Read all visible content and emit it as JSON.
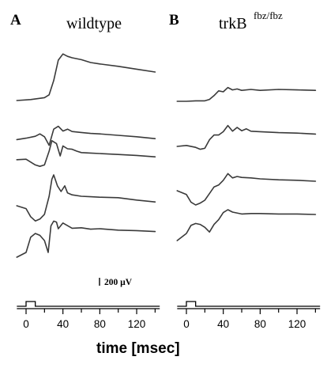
{
  "chart_data": [
    {
      "type": "line",
      "panel": "A",
      "title": "wildtype",
      "title_sup": "",
      "xlabel": "time [msec]",
      "xlim": [
        -10,
        145
      ],
      "x_ticks": [
        0,
        40,
        80,
        120
      ],
      "scale_bar": "200 µV",
      "stimulus": {
        "start_ms": 0,
        "end_ms": 10
      },
      "series": [
        {
          "x": [
            -10,
            5,
            20,
            25,
            30,
            35,
            40,
            45,
            50,
            60,
            70,
            80,
            100,
            120,
            140
          ],
          "y": [
            0,
            -20,
            -60,
            -120,
            -420,
            -850,
            -980,
            -930,
            -900,
            -860,
            -800,
            -770,
            -720,
            -660,
            -600
          ]
        },
        {
          "x": [
            -10,
            0,
            10,
            15,
            20,
            25,
            30,
            35,
            40,
            45,
            50,
            55,
            60,
            70,
            80,
            100,
            120,
            140
          ],
          "y": [
            -60,
            -90,
            -130,
            -180,
            -120,
            60,
            -280,
            -340,
            -240,
            -280,
            -230,
            -220,
            -210,
            -190,
            -180,
            -150,
            -120,
            -80
          ]
        },
        {
          "x": [
            -10,
            0,
            10,
            15,
            20,
            25,
            28,
            33,
            37,
            40,
            45,
            50,
            55,
            60,
            70,
            80,
            100,
            120,
            140
          ],
          "y": [
            -20,
            -30,
            90,
            120,
            90,
            -200,
            -420,
            -360,
            -100,
            -310,
            -250,
            -240,
            -200,
            -170,
            -160,
            -150,
            -130,
            -110,
            -80
          ]
        },
        {
          "x": [
            -10,
            0,
            5,
            10,
            15,
            20,
            25,
            28,
            30,
            34,
            38,
            42,
            45,
            50,
            60,
            70,
            80,
            100,
            120,
            140
          ],
          "y": [
            0,
            60,
            230,
            320,
            280,
            180,
            -200,
            -560,
            -650,
            -420,
            -300,
            -420,
            -270,
            -230,
            -200,
            -190,
            -180,
            -170,
            -120,
            -80
          ]
        },
        {
          "x": [
            -10,
            0,
            5,
            10,
            15,
            20,
            24,
            27,
            30,
            33,
            35,
            40,
            50,
            60,
            70,
            80,
            100,
            120,
            140
          ],
          "y": [
            0,
            -100,
            -420,
            -500,
            -460,
            -350,
            -100,
            -660,
            -760,
            -740,
            -600,
            -720,
            -610,
            -620,
            -590,
            -600,
            -570,
            -560,
            -540
          ]
        }
      ]
    },
    {
      "type": "line",
      "panel": "B",
      "title": "trkB",
      "title_sup": "fbz/fbz",
      "xlabel": "time [msec]",
      "xlim": [
        -10,
        145
      ],
      "x_ticks": [
        0,
        40,
        80,
        120
      ],
      "stimulus": {
        "start_ms": 0,
        "end_ms": 10
      },
      "series": [
        {
          "x": [
            -10,
            0,
            10,
            20,
            25,
            30,
            35,
            40,
            45,
            50,
            55,
            60,
            70,
            80,
            100,
            120,
            140
          ],
          "y": [
            0,
            0,
            -10,
            -10,
            -40,
            -120,
            -220,
            -200,
            -290,
            -240,
            -260,
            -230,
            -250,
            -230,
            -250,
            -240,
            -230
          ]
        },
        {
          "x": [
            -10,
            0,
            10,
            15,
            20,
            25,
            30,
            35,
            40,
            45,
            50,
            55,
            60,
            65,
            70,
            80,
            100,
            120,
            140
          ],
          "y": [
            0,
            -20,
            20,
            60,
            40,
            -140,
            -240,
            -240,
            -310,
            -440,
            -320,
            -400,
            -330,
            -370,
            -320,
            -310,
            -290,
            -280,
            -260
          ]
        },
        {
          "x": [
            -10,
            0,
            5,
            10,
            15,
            20,
            25,
            30,
            35,
            40,
            45,
            50,
            55,
            60,
            70,
            80,
            100,
            120,
            140
          ],
          "y": [
            0,
            80,
            240,
            300,
            260,
            200,
            60,
            -80,
            -120,
            -220,
            -360,
            -270,
            -300,
            -280,
            -270,
            -250,
            -230,
            -220,
            -200
          ]
        },
        {
          "x": [
            -10,
            0,
            5,
            10,
            15,
            20,
            25,
            30,
            35,
            40,
            45,
            50,
            60,
            70,
            80,
            100,
            120,
            140
          ],
          "y": [
            0,
            -150,
            -320,
            -360,
            -340,
            -280,
            -180,
            -340,
            -440,
            -590,
            -650,
            -600,
            -560,
            -570,
            -570,
            -560,
            -560,
            -550
          ]
        }
      ]
    }
  ]
}
